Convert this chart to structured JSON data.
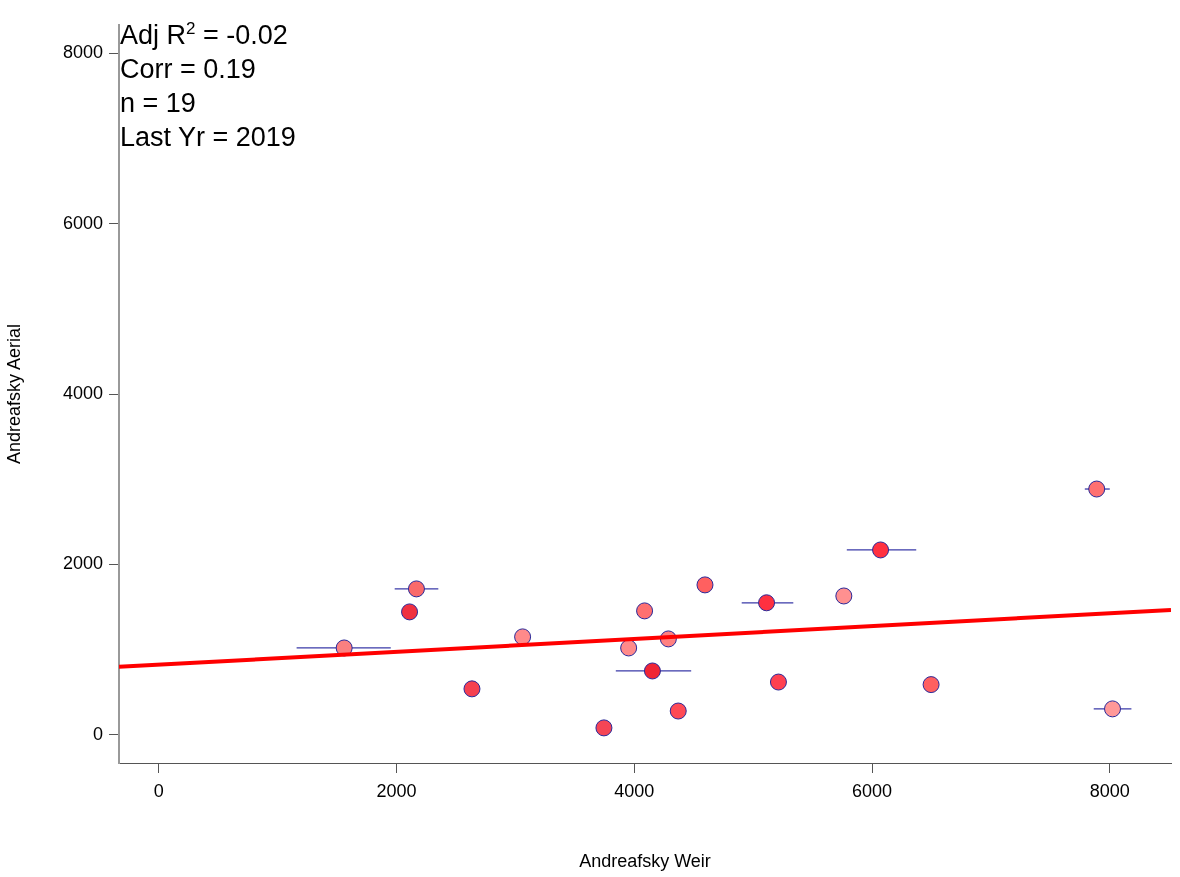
{
  "chart_data": {
    "type": "scatter",
    "xlabel": "Andreafsky Weir",
    "ylabel": "Andreafsky Aerial",
    "xlim": [
      -334,
      8515
    ],
    "ylim": [
      -330,
      8330
    ],
    "xticks": [
      0,
      2000,
      4000,
      6000,
      8000
    ],
    "yticks": [
      0,
      2000,
      4000,
      6000,
      8000
    ],
    "grid": false,
    "legend": false,
    "marker": "circle",
    "annotations": [
      "Adj R$^{2}$ = -0.02",
      "Corr = 0.19",
      "n = 19",
      "Last Yr = 2019"
    ],
    "series": [
      {
        "type": "scatter",
        "x": [
          1560,
          2110,
          2168,
          2635,
          3061,
          3745,
          3953,
          4087,
          4153,
          4287,
          4370,
          4595,
          5113,
          5213,
          5763,
          6072,
          6497,
          7890,
          8023
        ],
        "values": [
          1020,
          1443,
          1713,
          540,
          1150,
          82,
          1020,
          1455,
          750,
          1126,
          280,
          1760,
          1550,
          620,
          1630,
          2170,
          590,
          2885,
          305
        ],
        "colors": [
          "#fa8080",
          "#f03040",
          "#fa6a6a",
          "#f54050",
          "#ff8a8a",
          "#f54555",
          "#ff8a8a",
          "#ff7070",
          "#f02535",
          "#ff8080",
          "#ff4a55",
          "#ff6060",
          "#ff3040",
          "#ff4050",
          "#ff9090",
          "#ff3040",
          "#ff6060",
          "#ff7070",
          "#ff9898"
        ],
        "xerrors": [
          [
            1160,
            1952
          ],
          null,
          [
            1985,
            2352
          ],
          null,
          null,
          null,
          null,
          null,
          [
            3845,
            4479
          ],
          null,
          null,
          null,
          [
            4904,
            5338
          ],
          null,
          null,
          [
            5788,
            6372
          ],
          null,
          [
            7790,
            8000
          ],
          [
            7865,
            8182
          ]
        ]
      },
      {
        "type": "line",
        "x": [
          -334,
          8515
        ],
        "values": [
          798,
          1466
        ],
        "color": "#ff0000",
        "marker": "none",
        "line_style": "solid"
      }
    ]
  }
}
